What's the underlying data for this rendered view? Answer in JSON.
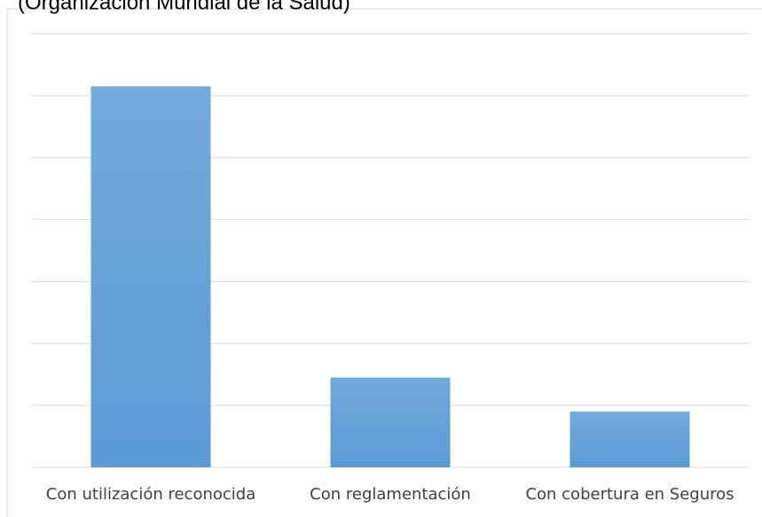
{
  "chart_data": {
    "type": "bar",
    "title": "(Organización Mundial de la Salud)",
    "categories": [
      "Con utilización reconocida",
      "Con reglamentación",
      "Con cobertura en Seguros"
    ],
    "values": [
      6.15,
      1.45,
      0.9
    ],
    "color": "#5b9bd5",
    "ylim": [
      0,
      7
    ],
    "yticks": [
      0,
      1,
      2,
      3,
      4,
      5,
      6,
      7
    ],
    "grid": true
  }
}
